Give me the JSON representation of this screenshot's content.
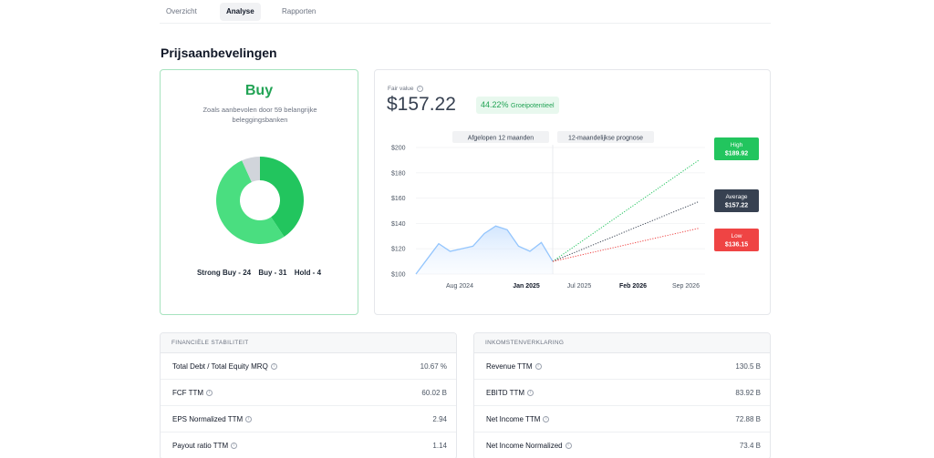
{
  "tabs": [
    {
      "label": "Overzicht"
    },
    {
      "label": "Analyse"
    },
    {
      "label": "Rapporten"
    }
  ],
  "section_title": "Prijsaanbevelingen",
  "recommendation": {
    "verdict": "Buy",
    "description": "Zoals aanbevolen door 59 belangrijke beleggingsbanken",
    "counts": {
      "strong_buy": 24,
      "buy": 31,
      "hold": 4
    },
    "legend": [
      "Strong Buy - 24",
      "Buy - 31",
      "Hold - 4"
    ],
    "colors": {
      "strong_buy": "#22c55e",
      "buy": "#4ade80",
      "hold": "#d1d5db",
      "verdict": "#22a355"
    }
  },
  "fair_value": {
    "label": "Fair value",
    "value": "$157.22",
    "growth_pct": "44.22%",
    "growth_label": "Groeipotentieel"
  },
  "chart_data": {
    "type": "line",
    "period_labels": [
      "Afgelopen 12 maanden",
      "12-maandelijkse prognose"
    ],
    "y_ticks": [
      "$200",
      "$180",
      "$160",
      "$140",
      "$120",
      "$100"
    ],
    "ylim": [
      100,
      200
    ],
    "x_ticks": [
      {
        "label": "Aug 2024",
        "bold": false
      },
      {
        "label": "Jan 2025",
        "bold": true
      },
      {
        "label": "Jul 2025",
        "bold": false
      },
      {
        "label": "Feb 2026",
        "bold": true
      },
      {
        "label": "Sep 2026",
        "bold": false
      }
    ],
    "history": [
      100,
      112,
      124,
      118,
      120,
      122,
      132,
      138,
      135,
      122,
      118,
      125,
      110
    ],
    "forecast": {
      "start": 110,
      "high": {
        "label": "High",
        "value_label": "$189.92",
        "value": 189.92,
        "color": "#22c55e"
      },
      "average": {
        "label": "Average",
        "value_label": "$157.22",
        "value": 157.22,
        "color": "#374151"
      },
      "low": {
        "label": "Low",
        "value_label": "$136.15",
        "value": 136.15,
        "color": "#ef4444"
      }
    }
  },
  "financial_stability": {
    "title": "FINANCIËLE STABILITEIT",
    "rows": [
      {
        "label": "Total Debt / Total Equity MRQ",
        "value": "10.67 %"
      },
      {
        "label": "FCF TTM",
        "value": "60.02 B"
      },
      {
        "label": "EPS Normalized TTM",
        "value": "2.94"
      },
      {
        "label": "Payout ratio TTM",
        "value": "1.14"
      }
    ]
  },
  "income_statement": {
    "title": "INKOMSTENVERKLARING",
    "rows": [
      {
        "label": "Revenue TTM",
        "value": "130.5 B"
      },
      {
        "label": "EBITD TTM",
        "value": "83.92 B"
      },
      {
        "label": "Net Income TTM",
        "value": "72.88 B"
      },
      {
        "label": "Net Income Normalized",
        "value": "73.4 B"
      }
    ]
  }
}
